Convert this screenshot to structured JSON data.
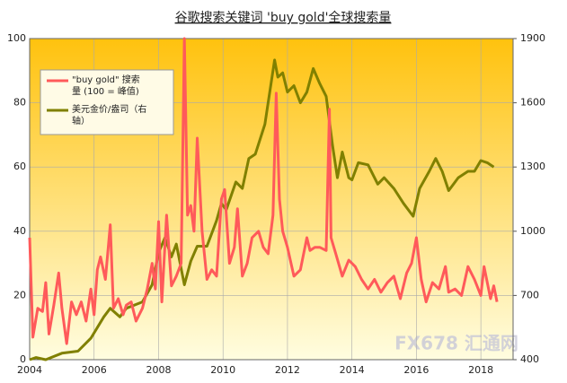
{
  "chart_data": {
    "type": "line",
    "title": "谷歌搜索关键词 'buy gold'全球搜索量",
    "watermark": "FX678 汇通网",
    "xlim": [
      2004,
      2019
    ],
    "xticks": [
      2004,
      2006,
      2008,
      2010,
      2012,
      2014,
      2016,
      2018
    ],
    "ylim": [
      0,
      100
    ],
    "yticks": [
      0,
      20,
      40,
      60,
      80,
      100
    ],
    "y2lim": [
      400,
      1900
    ],
    "y2ticks": [
      400,
      700,
      1000,
      1300,
      1600,
      1900
    ],
    "grid": true,
    "legend": "upper left",
    "series": [
      {
        "name": "\"buy gold\" 搜索量 (100 = 峰值)",
        "color": "#ff5a5a",
        "x": [
          2004.0,
          2004.1,
          2004.25,
          2004.4,
          2004.5,
          2004.6,
          2004.75,
          2004.9,
          2005.0,
          2005.15,
          2005.3,
          2005.45,
          2005.6,
          2005.75,
          2005.9,
          2006.0,
          2006.1,
          2006.2,
          2006.35,
          2006.5,
          2006.6,
          2006.75,
          2006.9,
          2007.0,
          2007.15,
          2007.3,
          2007.5,
          2007.65,
          2007.8,
          2007.9,
          2008.0,
          2008.1,
          2008.25,
          2008.4,
          2008.55,
          2008.7,
          2008.8,
          2008.9,
          2009.0,
          2009.1,
          2009.2,
          2009.35,
          2009.5,
          2009.65,
          2009.8,
          2009.95,
          2010.05,
          2010.2,
          2010.35,
          2010.45,
          2010.6,
          2010.75,
          2010.9,
          2011.1,
          2011.25,
          2011.4,
          2011.55,
          2011.65,
          2011.75,
          2011.85,
          2012.0,
          2012.2,
          2012.4,
          2012.6,
          2012.7,
          2012.85,
          2013.0,
          2013.2,
          2013.3,
          2013.35,
          2013.5,
          2013.7,
          2013.9,
          2014.1,
          2014.3,
          2014.5,
          2014.7,
          2014.9,
          2015.1,
          2015.3,
          2015.5,
          2015.7,
          2015.85,
          2016.0,
          2016.15,
          2016.3,
          2016.5,
          2016.7,
          2016.9,
          2017.0,
          2017.2,
          2017.4,
          2017.6,
          2017.8,
          2018.0,
          2018.1,
          2018.3,
          2018.4,
          2018.5
        ],
        "values": [
          38,
          7,
          16,
          15,
          24,
          8,
          17,
          27,
          16,
          5,
          18,
          14,
          18,
          12,
          22,
          14,
          28,
          32,
          25,
          42,
          16,
          19,
          14,
          17,
          18,
          12,
          16,
          22,
          30,
          22,
          43,
          18,
          45,
          23,
          26,
          30,
          100,
          45,
          48,
          40,
          69,
          40,
          25,
          28,
          26,
          50,
          53,
          30,
          35,
          47,
          26,
          30,
          38,
          40,
          35,
          33,
          45,
          83,
          50,
          40,
          35,
          26,
          28,
          38,
          34,
          35,
          35,
          34,
          78,
          38,
          33,
          26,
          31,
          29,
          25,
          22,
          25,
          21,
          24,
          26,
          19,
          27,
          30,
          38,
          25,
          18,
          24,
          22,
          29,
          21,
          22,
          20,
          29,
          25,
          20,
          29,
          19,
          23,
          18
        ]
      },
      {
        "name": "美元金价/盎司（右轴）",
        "color": "#808000",
        "axis": "y2",
        "x": [
          2004.0,
          2004.2,
          2004.5,
          2005.0,
          2005.5,
          2005.9,
          2006.3,
          2006.5,
          2006.8,
          2007.0,
          2007.5,
          2007.8,
          2008.0,
          2008.2,
          2008.4,
          2008.55,
          2008.8,
          2009.0,
          2009.2,
          2009.5,
          2009.8,
          2009.95,
          2010.1,
          2010.4,
          2010.6,
          2010.8,
          2011.0,
          2011.3,
          2011.6,
          2011.7,
          2011.85,
          2012.0,
          2012.2,
          2012.4,
          2012.6,
          2012.8,
          2013.0,
          2013.2,
          2013.4,
          2013.55,
          2013.7,
          2013.9,
          2014.0,
          2014.2,
          2014.5,
          2014.8,
          2015.0,
          2015.3,
          2015.6,
          2015.9,
          2016.1,
          2016.4,
          2016.6,
          2016.8,
          2017.0,
          2017.3,
          2017.6,
          2017.8,
          2018.0,
          2018.2,
          2018.4
        ],
        "values": [
          400,
          410,
          400,
          430,
          440,
          500,
          600,
          640,
          600,
          640,
          670,
          750,
          900,
          970,
          880,
          940,
          750,
          860,
          930,
          930,
          1050,
          1130,
          1100,
          1230,
          1200,
          1340,
          1360,
          1500,
          1800,
          1720,
          1740,
          1650,
          1680,
          1600,
          1650,
          1760,
          1690,
          1630,
          1400,
          1250,
          1370,
          1250,
          1240,
          1320,
          1310,
          1220,
          1250,
          1200,
          1130,
          1070,
          1200,
          1280,
          1340,
          1280,
          1190,
          1250,
          1280,
          1280,
          1330,
          1320,
          1300
        ]
      }
    ]
  }
}
